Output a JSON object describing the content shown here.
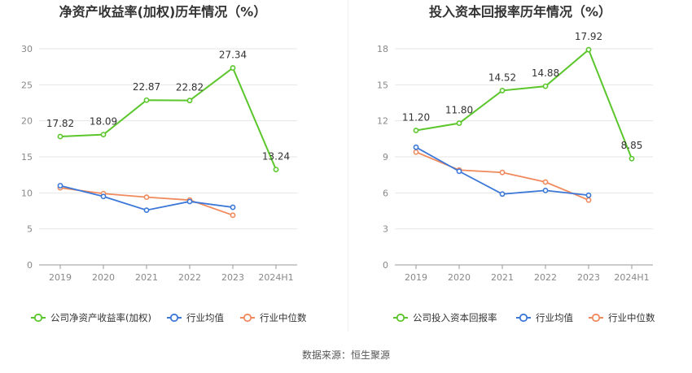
{
  "source": "数据来源：恒生聚源",
  "chart_data": [
    {
      "type": "line",
      "title": "净资产收益率(加权)历年情况（%）",
      "categories": [
        "2019",
        "2020",
        "2021",
        "2022",
        "2023",
        "2024H1"
      ],
      "ylim": [
        0,
        30
      ],
      "yticks": [
        0,
        5,
        10,
        15,
        20,
        25,
        30
      ],
      "grid": true,
      "legend_position": "bottom",
      "series": [
        {
          "name": "公司净资产收益率(加权)",
          "color": "#5bc62b",
          "values": [
            17.82,
            18.09,
            22.87,
            22.82,
            27.34,
            13.24
          ],
          "labels": [
            "17.82",
            "18.09",
            "22.87",
            "22.82",
            "27.34",
            "13.24"
          ]
        },
        {
          "name": "行业均值",
          "color": "#3c78d8",
          "values": [
            11.0,
            9.5,
            7.6,
            8.8,
            8.0,
            null
          ]
        },
        {
          "name": "行业中位数",
          "color": "#f08a5d",
          "values": [
            10.7,
            9.9,
            9.4,
            9.0,
            6.9,
            null
          ]
        }
      ]
    },
    {
      "type": "line",
      "title": "投入资本回报率历年情况（%）",
      "categories": [
        "2019",
        "2020",
        "2021",
        "2022",
        "2023",
        "2024H1"
      ],
      "ylim": [
        0,
        18
      ],
      "yticks": [
        0,
        3,
        6,
        9,
        12,
        15,
        18
      ],
      "grid": true,
      "legend_position": "bottom",
      "series": [
        {
          "name": "公司投入资本回报率",
          "color": "#5bc62b",
          "values": [
            11.2,
            11.8,
            14.52,
            14.88,
            17.92,
            8.85
          ],
          "labels": [
            "11.20",
            "11.80",
            "14.52",
            "14.88",
            "17.92",
            "8.85"
          ]
        },
        {
          "name": "行业均值",
          "color": "#3c78d8",
          "values": [
            9.8,
            7.8,
            5.9,
            6.2,
            5.8,
            null
          ]
        },
        {
          "name": "行业中位数",
          "color": "#f08a5d",
          "values": [
            9.4,
            7.9,
            7.7,
            6.9,
            5.4,
            null
          ]
        }
      ]
    }
  ]
}
